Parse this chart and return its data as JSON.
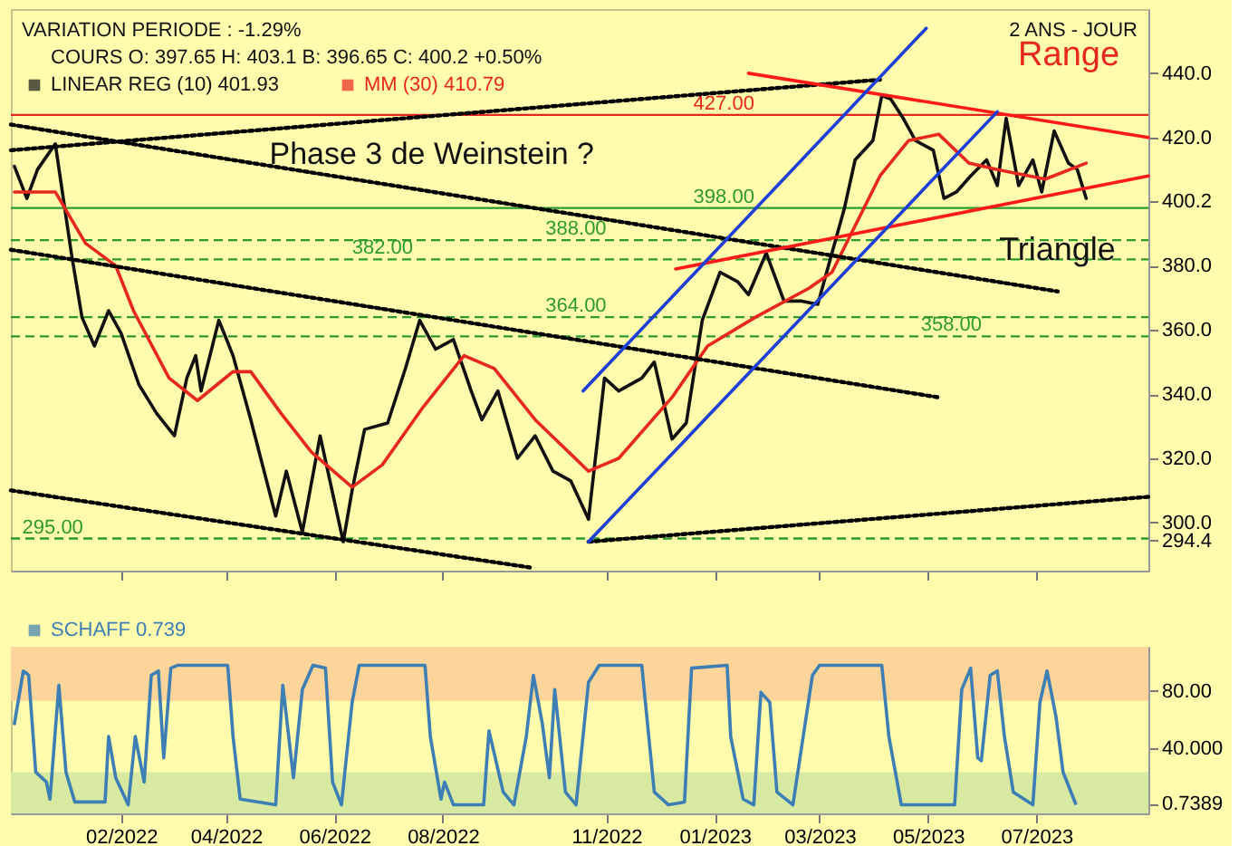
{
  "chart_data": [
    {
      "type": "line",
      "title": "VARIATION PERIODE : -1.29%",
      "subtitle": "2 ANS - JOUR",
      "annotations": [
        "COURS     O: 397.65     H: 403.1     B: 396.65     C: 400.2     +0.50%",
        "Phase 3 de Weinstein ?",
        "Range",
        "Triangle"
      ],
      "series": [
        {
          "name": "LINEAR REG (10) 401.93",
          "color": "#111111",
          "x": [
            "2021-12-03",
            "2021-12-10",
            "2021-12-16",
            "2021-12-26",
            "2022-01-04",
            "2022-01-10",
            "2022-01-17",
            "2022-01-25",
            "2022-02-01",
            "2022-02-11",
            "2022-02-21",
            "2022-03-03",
            "2022-03-10",
            "2022-03-15",
            "2022-03-18",
            "2022-03-28",
            "2022-04-05",
            "2022-04-15",
            "2022-04-29",
            "2022-05-05",
            "2022-05-14",
            "2022-05-24",
            "2022-06-06",
            "2022-06-11",
            "2022-06-18",
            "2022-07-01",
            "2022-07-11",
            "2022-07-19",
            "2022-07-28",
            "2022-08-07",
            "2022-08-17",
            "2022-08-23",
            "2022-09-01",
            "2022-09-12",
            "2022-09-22",
            "2022-10-02",
            "2022-10-12",
            "2022-10-22",
            "2022-10-31",
            "2022-11-08",
            "2022-11-21",
            "2022-11-28",
            "2022-12-08",
            "2022-12-16",
            "2022-12-25",
            "2023-01-04",
            "2023-01-14",
            "2023-01-20",
            "2023-01-30",
            "2023-02-09",
            "2023-02-19",
            "2023-02-28",
            "2023-03-08",
            "2023-03-15",
            "2023-03-21",
            "2023-03-31",
            "2023-04-05",
            "2023-04-10",
            "2023-04-17",
            "2023-04-24",
            "2023-05-04",
            "2023-05-10",
            "2023-05-17",
            "2023-05-25",
            "2023-06-03",
            "2023-06-09",
            "2023-06-14",
            "2023-06-21",
            "2023-06-29",
            "2023-07-04",
            "2023-07-11",
            "2023-07-19",
            "2023-07-24",
            "2023-07-29"
          ],
          "values": [
            411,
            401,
            410,
            418,
            384,
            364,
            355,
            366,
            359,
            343,
            334,
            327,
            345,
            352,
            341,
            363,
            352,
            332,
            302,
            316,
            297,
            327,
            294,
            310,
            329,
            331,
            348,
            363,
            354,
            357,
            341,
            332,
            341,
            320,
            327,
            316,
            313,
            301,
            345,
            341,
            345,
            350,
            326,
            331,
            363,
            378,
            375,
            371,
            384,
            369,
            369,
            368,
            384,
            398,
            413,
            419,
            433,
            432,
            426,
            419,
            416,
            401,
            403,
            408,
            413,
            405,
            426,
            405,
            413,
            403,
            422,
            412,
            410,
            401
          ]
        },
        {
          "name": "MM (30) 410.79",
          "color": "#e8281e",
          "x": [
            "2021-12-03",
            "2021-12-26",
            "2022-01-12",
            "2022-01-29",
            "2022-02-08",
            "2022-02-28",
            "2022-03-16",
            "2022-04-05",
            "2022-04-15",
            "2022-05-02",
            "2022-05-19",
            "2022-06-11",
            "2022-06-28",
            "2022-07-21",
            "2022-08-13",
            "2022-08-30",
            "2022-09-22",
            "2022-10-22",
            "2022-11-08",
            "2022-12-08",
            "2022-12-28",
            "2023-01-24",
            "2023-02-23",
            "2023-03-08",
            "2023-04-04",
            "2023-04-20",
            "2023-05-07",
            "2023-05-24",
            "2023-06-09",
            "2023-07-06",
            "2023-07-29"
          ],
          "values": [
            403,
            403,
            387,
            380,
            366,
            345,
            338,
            347,
            347,
            334,
            322,
            311,
            318,
            336,
            352,
            348,
            332,
            316,
            320,
            339,
            355,
            364,
            373,
            378,
            408,
            419,
            421,
            412,
            410,
            407,
            412
          ]
        },
        {
          "color": "#000000",
          "line_style": "dotted",
          "x": [
            "2021-12-01",
            "2023-04-04"
          ],
          "values": [
            416,
            438
          ]
        },
        {
          "color": "#000000",
          "line_style": "dotted",
          "x": [
            "2021-12-01",
            "2023-07-13"
          ],
          "values": [
            424,
            372
          ]
        },
        {
          "color": "#000000",
          "line_style": "dotted",
          "x": [
            "2021-12-01",
            "2023-05-07"
          ],
          "values": [
            385,
            339
          ]
        },
        {
          "color": "#000000",
          "line_style": "dotted",
          "x": [
            "2021-12-01",
            "2022-09-19"
          ],
          "values": [
            310,
            286
          ]
        },
        {
          "color": "#000000",
          "line_style": "dotted",
          "x": [
            "2022-10-22",
            "2023-09-02"
          ],
          "values": [
            294,
            308
          ]
        },
        {
          "color": "#ff1a1a",
          "x": [
            "2023-01-20",
            "2023-09-02"
          ],
          "values": [
            440,
            420
          ]
        },
        {
          "color": "#ff1a1a",
          "x": [
            "2022-12-10",
            "2023-09-02"
          ],
          "values": [
            379,
            408
          ]
        },
        {
          "color": "#1f3fd8",
          "x": [
            "2022-10-22",
            "2023-06-09"
          ],
          "values": [
            294,
            428
          ]
        },
        {
          "color": "#1f3fd8",
          "x": [
            "2022-10-19",
            "2023-04-30"
          ],
          "values": [
            341,
            454
          ]
        }
      ],
      "ref_lines": [
        {
          "axis": "y",
          "value": 427,
          "label": "427.00",
          "color": "#e8281e",
          "line_style": "solid"
        },
        {
          "axis": "y",
          "value": 398,
          "label": "398.00",
          "color": "#2e9a2e",
          "line_style": "solid"
        },
        {
          "axis": "y",
          "value": 388,
          "label": "388.00",
          "color": "#2e9a2e",
          "line_style": "dashed"
        },
        {
          "axis": "y",
          "value": 382,
          "label": "382.00",
          "color": "#2e9a2e",
          "line_style": "dashed"
        },
        {
          "axis": "y",
          "value": 364,
          "label": "364.00",
          "color": "#2e9a2e",
          "line_style": "dashed"
        },
        {
          "axis": "y",
          "value": 358,
          "label": "358.00",
          "color": "#2e9a2e",
          "line_style": "dashed"
        },
        {
          "axis": "y",
          "value": 295,
          "label": "295.00",
          "color": "#2e9a2e",
          "line_style": "dashed"
        }
      ],
      "xlim": [
        "2021-12-01",
        "2023-09-02"
      ],
      "xticks": [
        {
          "value": "2022-02-01",
          "label": null
        },
        {
          "value": "2022-04-01",
          "label": null
        },
        {
          "value": "2022-06-01",
          "label": null
        },
        {
          "value": "2022-08-01",
          "label": null
        },
        {
          "value": "2022-11-01",
          "label": null
        },
        {
          "value": "2023-01-01",
          "label": null
        },
        {
          "value": "2023-03-01",
          "label": null
        },
        {
          "value": "2023-05-01",
          "label": null
        },
        {
          "value": "2023-07-01",
          "label": null
        }
      ],
      "ylim": [
        285,
        460
      ],
      "yticks": [
        {
          "value": 294.4,
          "label": "294.4"
        },
        {
          "value": 300,
          "label": "300.0"
        },
        {
          "value": 320,
          "label": "320.0"
        },
        {
          "value": 340,
          "label": "340.0"
        },
        {
          "value": 360,
          "label": "360.0"
        },
        {
          "value": 380,
          "label": "380.0"
        },
        {
          "value": 400.2,
          "label": "400.2"
        },
        {
          "value": 420,
          "label": "420.0"
        },
        {
          "value": 440,
          "label": "440.0"
        }
      ],
      "tick_labels": "y",
      "grid": false,
      "legend": "top left"
    },
    {
      "type": "line",
      "series": [
        {
          "name": "SCHAFF 0.739",
          "color": "#3d7fb5",
          "x": [
            "2021-12-03",
            "2021-12-08",
            "2021-12-11",
            "2021-12-15",
            "2021-12-21",
            "2021-12-23",
            "2021-12-28",
            "2022-01-01",
            "2022-01-06",
            "2022-01-23",
            "2022-01-25",
            "2022-01-29",
            "2022-02-05",
            "2022-02-09",
            "2022-02-14",
            "2022-02-18",
            "2022-02-22",
            "2022-02-25",
            "2022-03-01",
            "2022-03-05",
            "2022-04-02",
            "2022-04-05",
            "2022-04-09",
            "2022-04-29",
            "2022-05-03",
            "2022-05-09",
            "2022-05-14",
            "2022-05-20",
            "2022-05-27",
            "2022-05-31",
            "2022-06-05",
            "2022-06-11",
            "2022-06-15",
            "2022-07-22",
            "2022-07-25",
            "2022-07-31",
            "2022-08-02",
            "2022-08-07",
            "2022-08-24",
            "2022-08-27",
            "2022-09-04",
            "2022-09-10",
            "2022-09-17",
            "2022-09-21",
            "2022-09-26",
            "2022-09-30",
            "2022-10-03",
            "2022-10-09",
            "2022-10-15",
            "2022-10-22",
            "2022-10-28",
            "2022-11-21",
            "2022-11-23",
            "2022-11-28",
            "2022-12-06",
            "2022-12-15",
            "2022-12-19",
            "2023-01-08",
            "2023-01-10",
            "2023-01-17",
            "2023-01-23",
            "2023-01-27",
            "2023-02-01",
            "2023-02-05",
            "2023-02-14",
            "2023-02-25",
            "2023-03-01",
            "2023-04-05",
            "2023-04-09",
            "2023-04-16",
            "2023-05-16",
            "2023-05-20",
            "2023-05-25",
            "2023-05-29",
            "2023-05-31",
            "2023-06-05",
            "2023-06-09",
            "2023-06-13",
            "2023-06-18",
            "2023-06-29",
            "2023-07-03",
            "2023-07-07",
            "2023-07-12",
            "2023-07-16",
            "2023-07-23"
          ],
          "values": [
            57,
            94,
            91,
            23,
            16,
            4,
            84,
            23,
            2,
            2,
            48,
            19,
            0,
            48,
            16,
            91,
            94,
            33,
            96,
            98,
            98,
            48,
            4,
            0,
            84,
            19,
            81,
            98,
            96,
            16,
            0,
            72,
            98,
            98,
            48,
            4,
            16,
            0,
            0,
            52,
            9,
            0,
            48,
            91,
            57,
            19,
            81,
            9,
            0,
            86,
            98,
            98,
            72,
            9,
            0,
            2,
            96,
            98,
            48,
            4,
            0,
            79,
            72,
            9,
            0,
            91,
            98,
            98,
            48,
            0,
            0,
            81,
            96,
            33,
            31,
            91,
            94,
            48,
            9,
            0,
            72,
            94,
            62,
            23,
            1
          ]
        }
      ],
      "bands": [
        {
          "axis": "y",
          "from": 73,
          "to": 111,
          "color": "#fdd49a"
        },
        {
          "axis": "y",
          "from": -6,
          "to": 23,
          "color": "#d8eaa2"
        }
      ],
      "xlim": [
        "2021-12-01",
        "2023-09-02"
      ],
      "xticks": [
        {
          "value": "2022-02-01",
          "label": "02/2022"
        },
        {
          "value": "2022-04-01",
          "label": "04/2022"
        },
        {
          "value": "2022-06-01",
          "label": "06/2022"
        },
        {
          "value": "2022-08-01",
          "label": "08/2022"
        },
        {
          "value": "2022-11-01",
          "label": "11/2022"
        },
        {
          "value": "2023-01-01",
          "label": "01/2023"
        },
        {
          "value": "2023-03-01",
          "label": "03/2023"
        },
        {
          "value": "2023-05-01",
          "label": "05/2023"
        },
        {
          "value": "2023-07-01",
          "label": "07/2023"
        }
      ],
      "ylim": [
        -6,
        111
      ],
      "yticks": [
        {
          "value": 0.7389,
          "label": "0.7389"
        },
        {
          "value": 40,
          "label": "40.000"
        },
        {
          "value": 80,
          "label": "80.00"
        }
      ],
      "grid": false,
      "legend": "top left"
    }
  ]
}
